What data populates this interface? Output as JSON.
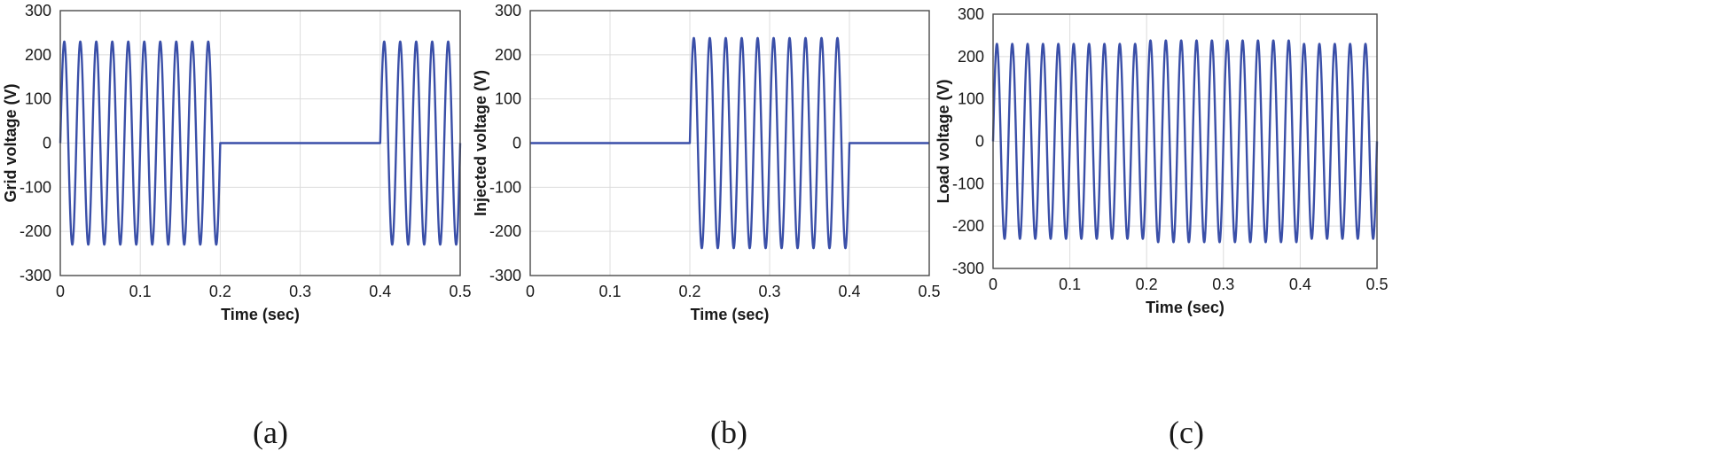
{
  "colors": {
    "trace": "#3a4fa8"
  },
  "chart_data": [
    {
      "type": "line",
      "panel_label": "(a)",
      "xlabel": "Time (sec)",
      "ylabel": "Grid voltage (V)",
      "xlim": [
        0,
        0.5
      ],
      "ylim": [
        -300,
        300
      ],
      "xticks": [
        "0",
        "0.1",
        "0.2",
        "0.3",
        "0.4",
        "0.5"
      ],
      "yticks": [
        "300",
        "200",
        "100",
        "0",
        "-100",
        "-200",
        "-300"
      ],
      "grid": true,
      "frequency_hz": 50,
      "series": [
        {
          "segments": [
            {
              "x_start": 0.0,
              "x_end": 0.2,
              "amplitude": 230
            },
            {
              "x_start": 0.2,
              "x_end": 0.4,
              "amplitude": 0
            },
            {
              "x_start": 0.4,
              "x_end": 0.5,
              "amplitude": 230
            }
          ]
        }
      ]
    },
    {
      "type": "line",
      "panel_label": "(b)",
      "xlabel": "Time (sec)",
      "ylabel": "Injected voltage (V)",
      "xlim": [
        0,
        0.5
      ],
      "ylim": [
        -300,
        300
      ],
      "xticks": [
        "0",
        "0.1",
        "0.2",
        "0.3",
        "0.4",
        "0.5"
      ],
      "yticks": [
        "300",
        "200",
        "100",
        "0",
        "-100",
        "-200",
        "-300"
      ],
      "grid": true,
      "frequency_hz": 50,
      "series": [
        {
          "segments": [
            {
              "x_start": 0.0,
              "x_end": 0.2,
              "amplitude": 0
            },
            {
              "x_start": 0.2,
              "x_end": 0.4,
              "amplitude": 238
            },
            {
              "x_start": 0.4,
              "x_end": 0.5,
              "amplitude": 0
            }
          ]
        }
      ]
    },
    {
      "type": "line",
      "panel_label": "(c)",
      "xlabel": "Time (sec)",
      "ylabel": "Load voltage (V)",
      "xlim": [
        0,
        0.5
      ],
      "ylim": [
        -300,
        300
      ],
      "xticks": [
        "0",
        "0.1",
        "0.2",
        "0.3",
        "0.4",
        "0.5"
      ],
      "yticks": [
        "300",
        "200",
        "100",
        "0",
        "-100",
        "-200",
        "-300"
      ],
      "grid": true,
      "frequency_hz": 50,
      "series": [
        {
          "segments": [
            {
              "x_start": 0.0,
              "x_end": 0.2,
              "amplitude": 230
            },
            {
              "x_start": 0.2,
              "x_end": 0.4,
              "amplitude": 238
            },
            {
              "x_start": 0.4,
              "x_end": 0.5,
              "amplitude": 230
            }
          ]
        }
      ]
    }
  ]
}
